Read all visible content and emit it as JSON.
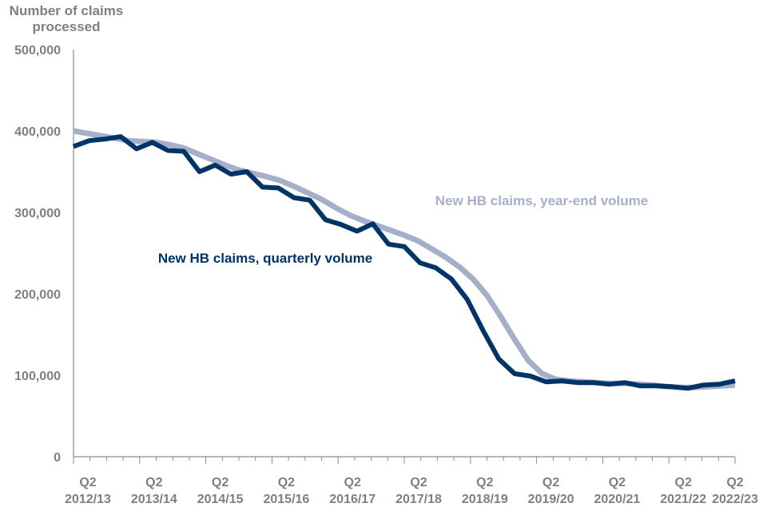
{
  "chart_data": {
    "type": "line",
    "ylabel": "Number of claims processed",
    "ylim": [
      0,
      500000
    ],
    "yticks": [
      0,
      100000,
      200000,
      300000,
      400000,
      500000
    ],
    "ytick_labels": [
      "0",
      "100,000",
      "200,000",
      "300,000",
      "400,000",
      "500,000"
    ],
    "xtick_labels": [
      {
        "q": "Q2",
        "year": "2012/13"
      },
      {
        "q": "Q2",
        "year": "2013/14"
      },
      {
        "q": "Q2",
        "year": "2014/15"
      },
      {
        "q": "Q2",
        "year": "2015/16"
      },
      {
        "q": "Q2",
        "year": "2016/17"
      },
      {
        "q": "Q2",
        "year": "2017/18"
      },
      {
        "q": "Q2",
        "year": "2018/19"
      },
      {
        "q": "Q2",
        "year": "2019/20"
      },
      {
        "q": "Q2",
        "year": "2020/21"
      },
      {
        "q": "Q2",
        "year": "2021/22"
      },
      {
        "q": "Q2",
        "year": "2022/23"
      }
    ],
    "series": [
      {
        "name": "New HB claims, year-end volume",
        "color": "#a6afc9",
        "values": [
          400000,
          397000,
          394000,
          391000,
          388000,
          387000,
          386000,
          383000,
          379000,
          372000,
          365000,
          358000,
          352000,
          348000,
          344000,
          339000,
          332000,
          324000,
          316000,
          306000,
          297000,
          290000,
          284000,
          278000,
          272000,
          265000,
          255000,
          245000,
          233000,
          218000,
          198000,
          172000,
          144000,
          118000,
          102000,
          95000,
          93000,
          92000,
          91000,
          90000,
          90000,
          89000,
          88000,
          86000,
          85000,
          85000,
          86000,
          87000,
          88000
        ]
      },
      {
        "name": "New HB claims, quarterly volume",
        "color": "#003366",
        "values": [
          381000,
          388000,
          390000,
          393000,
          378000,
          386000,
          376000,
          375000,
          350000,
          358000,
          347000,
          350000,
          331000,
          330000,
          318000,
          315000,
          291000,
          285000,
          277000,
          286000,
          261000,
          258000,
          238000,
          232000,
          218000,
          193000,
          155000,
          120000,
          102000,
          99000,
          92000,
          93000,
          91000,
          91000,
          89000,
          91000,
          87000,
          87000,
          86000,
          84000,
          88000,
          89000,
          93000
        ]
      }
    ],
    "annotations": [
      {
        "text": "New HB claims, year-end volume",
        "series": 0
      },
      {
        "text": "New HB claims, quarterly volume",
        "series": 1
      }
    ]
  }
}
